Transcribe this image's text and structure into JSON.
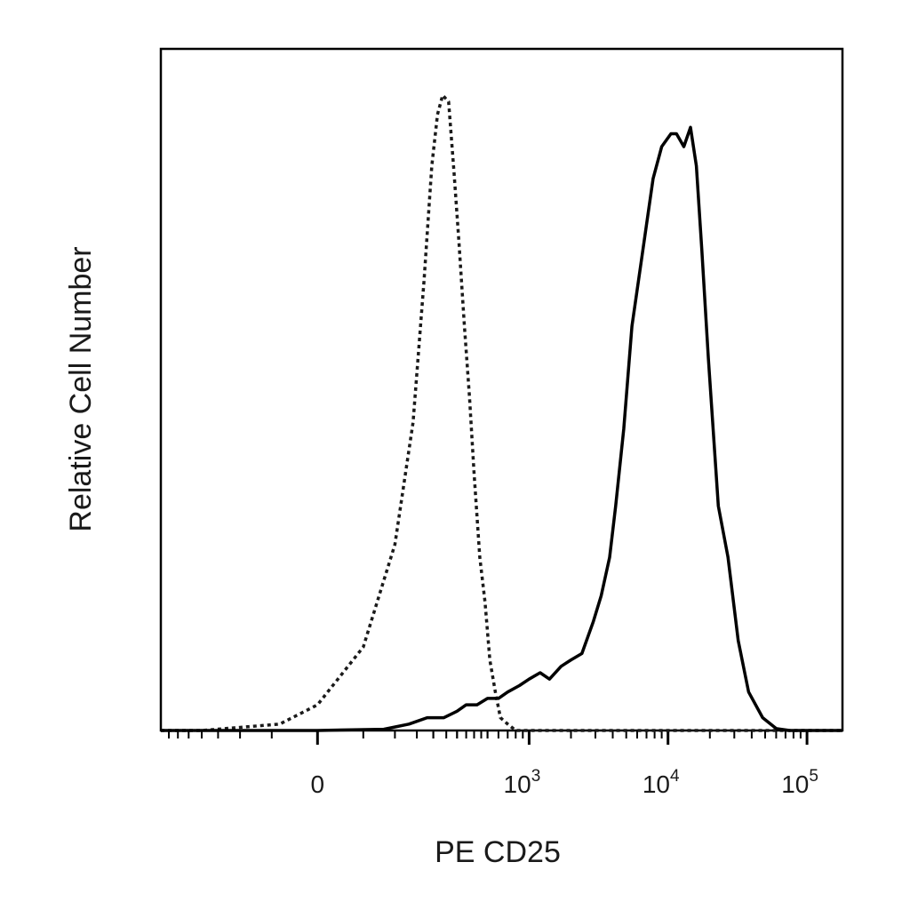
{
  "chart_data": {
    "type": "line",
    "title": "",
    "xlabel": "PE CD25",
    "ylabel": "Relative Cell Number",
    "x_scale": "biexponential",
    "xlim": [
      -400,
      180000
    ],
    "ylim": [
      0,
      1.0
    ],
    "grid": false,
    "legend": "none",
    "x_ticks": [
      {
        "value": 0,
        "base": "0",
        "exp": ""
      },
      {
        "value": 1000,
        "base": "10",
        "exp": "3"
      },
      {
        "value": 10000,
        "base": "10",
        "exp": "4"
      },
      {
        "value": 100000,
        "base": "10",
        "exp": "5"
      }
    ],
    "series": [
      {
        "style": "dotted",
        "color": "#1a1a1a",
        "points": [
          [
            -400,
            0
          ],
          [
            -200,
            0
          ],
          [
            -40,
            0.01
          ],
          [
            0,
            0.04
          ],
          [
            50,
            0.13
          ],
          [
            100,
            0.29
          ],
          [
            140,
            0.48
          ],
          [
            170,
            0.7
          ],
          [
            195,
            0.88
          ],
          [
            215,
            0.96
          ],
          [
            235,
            0.99
          ],
          [
            260,
            0.98
          ],
          [
            285,
            0.87
          ],
          [
            310,
            0.76
          ],
          [
            340,
            0.63
          ],
          [
            370,
            0.52
          ],
          [
            400,
            0.4
          ],
          [
            440,
            0.27
          ],
          [
            480,
            0.2
          ],
          [
            520,
            0.11
          ],
          [
            570,
            0.06
          ],
          [
            620,
            0.02
          ],
          [
            700,
            0.01
          ],
          [
            800,
            0
          ],
          [
            1000,
            0
          ],
          [
            10000,
            0
          ],
          [
            180000,
            0
          ]
        ]
      },
      {
        "style": "solid",
        "color": "#000000",
        "points": [
          [
            -400,
            0
          ],
          [
            0,
            0
          ],
          [
            80,
            0.002
          ],
          [
            130,
            0.01
          ],
          [
            180,
            0.02
          ],
          [
            240,
            0.02
          ],
          [
            300,
            0.03
          ],
          [
            350,
            0.04
          ],
          [
            420,
            0.04
          ],
          [
            500,
            0.05
          ],
          [
            600,
            0.05
          ],
          [
            700,
            0.06
          ],
          [
            850,
            0.07
          ],
          [
            1000,
            0.08
          ],
          [
            1200,
            0.09
          ],
          [
            1400,
            0.08
          ],
          [
            1700,
            0.1
          ],
          [
            2000,
            0.11
          ],
          [
            2400,
            0.12
          ],
          [
            2900,
            0.17
          ],
          [
            3300,
            0.21
          ],
          [
            3800,
            0.27
          ],
          [
            4200,
            0.35
          ],
          [
            4800,
            0.47
          ],
          [
            5500,
            0.63
          ],
          [
            6500,
            0.74
          ],
          [
            7800,
            0.86
          ],
          [
            9000,
            0.91
          ],
          [
            10500,
            0.93
          ],
          [
            11500,
            0.93
          ],
          [
            13000,
            0.91
          ],
          [
            14500,
            0.94
          ],
          [
            16000,
            0.88
          ],
          [
            17500,
            0.75
          ],
          [
            19500,
            0.58
          ],
          [
            23000,
            0.35
          ],
          [
            27000,
            0.27
          ],
          [
            32000,
            0.14
          ],
          [
            38000,
            0.06
          ],
          [
            48000,
            0.02
          ],
          [
            60000,
            0.003
          ],
          [
            75000,
            0
          ],
          [
            180000,
            0
          ]
        ]
      }
    ]
  }
}
